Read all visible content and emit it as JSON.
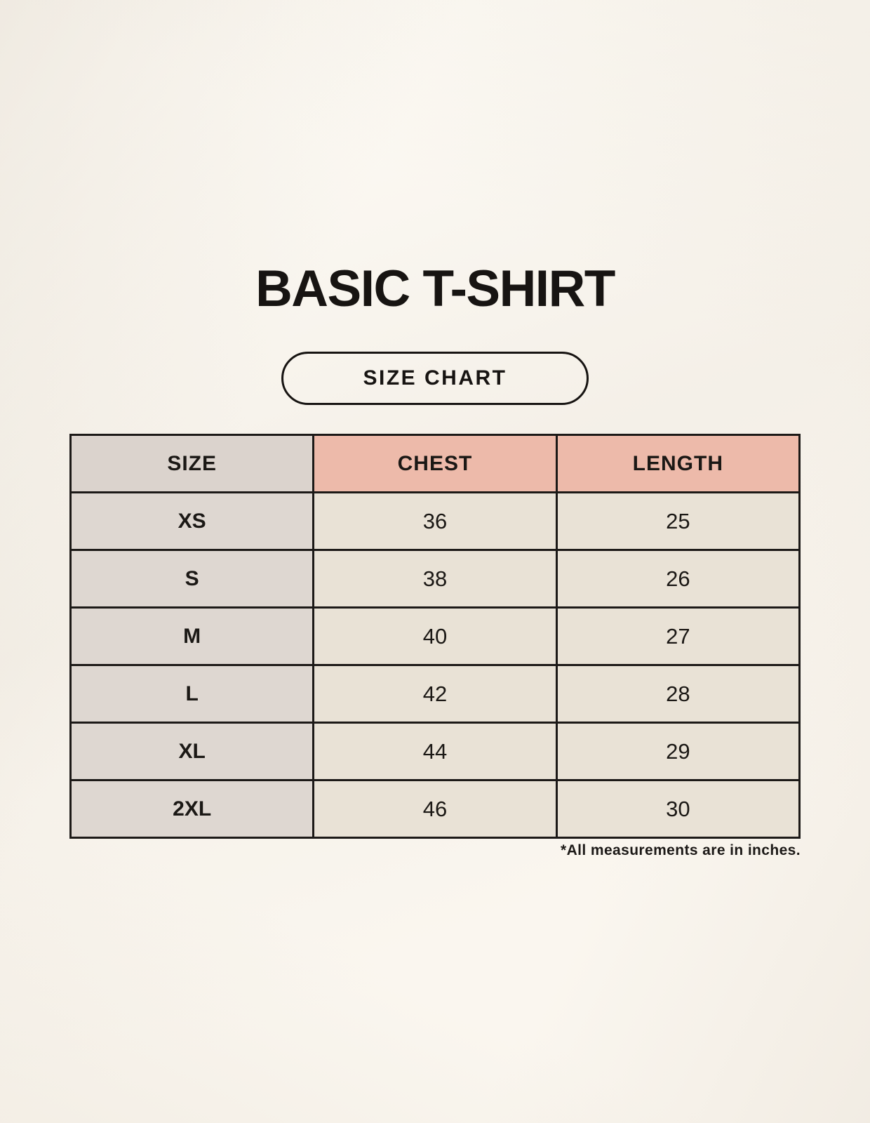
{
  "chart_data": {
    "type": "table",
    "title": "BASIC T-SHIRT",
    "subtitle": "SIZE CHART",
    "headers": [
      "SIZE",
      "CHEST",
      "LENGTH"
    ],
    "rows": [
      [
        "XS",
        "36",
        "25"
      ],
      [
        "S",
        "38",
        "26"
      ],
      [
        "M",
        "40",
        "27"
      ],
      [
        "L",
        "42",
        "28"
      ],
      [
        "XL",
        "44",
        "29"
      ],
      [
        "2XL",
        "46",
        "30"
      ]
    ],
    "note": "*All measurements are in inches."
  },
  "colors": {
    "background": "#f7f3ec",
    "accent_salmon": "#edbaaa",
    "header_gray": "#dbd3cd",
    "size_column_gray": "#ded7d1",
    "cell_cream": "#e9e2d6",
    "border": "#1c1917",
    "text": "#171412"
  }
}
